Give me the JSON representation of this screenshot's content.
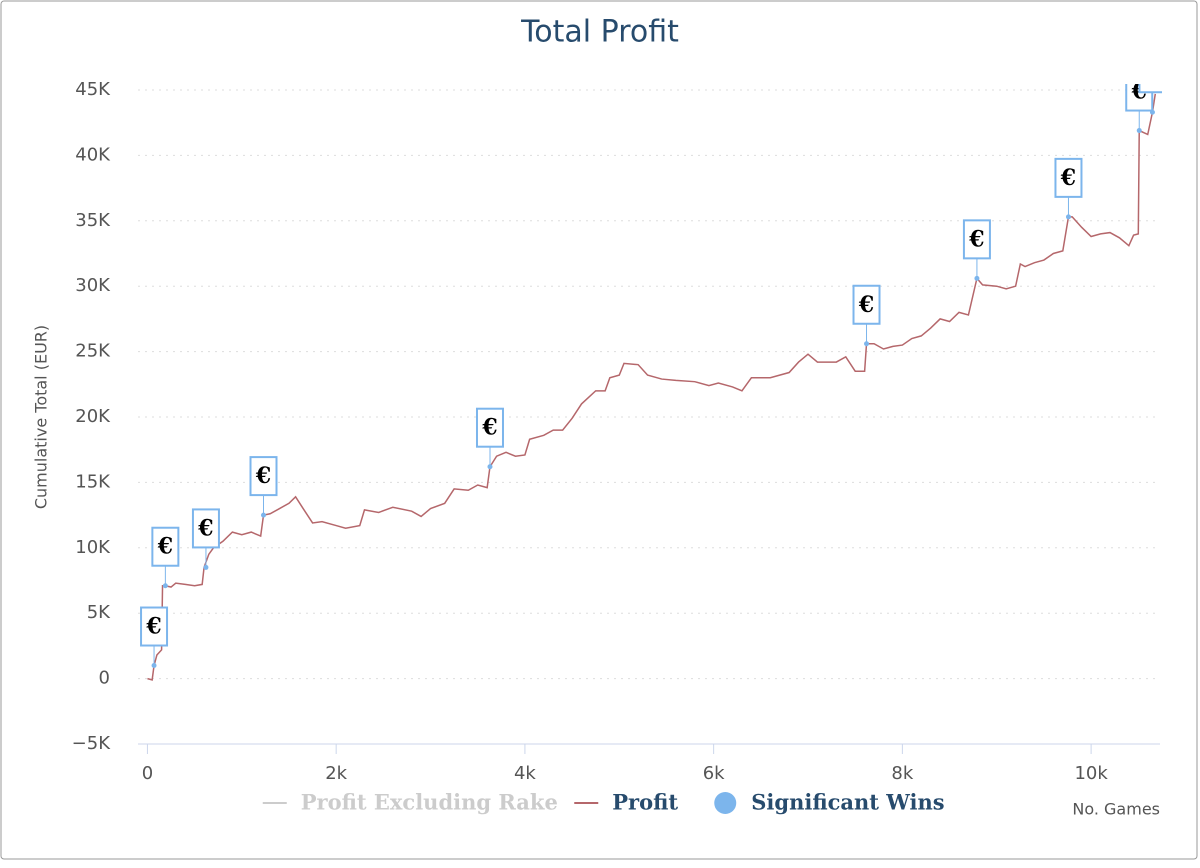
{
  "chart_data": {
    "type": "line",
    "title": "Total Profit",
    "y_label": "Cumulative Total (EUR)",
    "x_label": "No. Games",
    "xlim": [
      -100,
      10730
    ],
    "ylim": [
      -5000,
      45000
    ],
    "xticks": [
      0,
      {
        "value": 2000,
        "label": "2k"
      },
      {
        "value": 4000,
        "label": "4k"
      },
      {
        "value": 6000,
        "label": "6k"
      },
      {
        "value": 8000,
        "label": "8k"
      },
      {
        "value": 10000,
        "label": "10k"
      }
    ],
    "yticks": [
      {
        "value": -5000,
        "label": "−5K"
      },
      0,
      {
        "value": 5000,
        "label": "5K"
      },
      {
        "value": 10000,
        "label": "10K"
      },
      {
        "value": 15000,
        "label": "15K"
      },
      {
        "value": 20000,
        "label": "20K"
      },
      {
        "value": 25000,
        "label": "25K"
      },
      {
        "value": 30000,
        "label": "30K"
      },
      {
        "value": 35000,
        "label": "35K"
      },
      {
        "value": 40000,
        "label": "40K"
      },
      {
        "value": 45000,
        "label": "45K"
      }
    ],
    "grid": true,
    "legend": "bottom",
    "series": [
      {
        "name": "Profit Excluding Rake",
        "color": "#cccccc",
        "visible": false,
        "x": [],
        "values": []
      },
      {
        "name": "Profit",
        "color": "#b5676b",
        "visible": true,
        "x": [
          0,
          50,
          70,
          100,
          150,
          160,
          190,
          250,
          300,
          400,
          500,
          580,
          600,
          650,
          700,
          800,
          900,
          1000,
          1100,
          1200,
          1230,
          1300,
          1400,
          1500,
          1570,
          1650,
          1750,
          1850,
          2000,
          2100,
          2250,
          2300,
          2450,
          2600,
          2800,
          2900,
          3000,
          3150,
          3250,
          3400,
          3500,
          3600,
          3630,
          3700,
          3800,
          3900,
          4000,
          4050,
          4200,
          4300,
          4400,
          4500,
          4600,
          4750,
          4850,
          4900,
          5000,
          5050,
          5200,
          5300,
          5450,
          5600,
          5800,
          5950,
          6050,
          6200,
          6300,
          6400,
          6600,
          6800,
          6900,
          7000,
          7100,
          7300,
          7400,
          7500,
          7600,
          7620,
          7700,
          7800,
          7900,
          8000,
          8100,
          8200,
          8300,
          8400,
          8500,
          8600,
          8700,
          8790,
          8850,
          9000,
          9100,
          9200,
          9250,
          9300,
          9400,
          9500,
          9600,
          9700,
          9760,
          9800,
          9900,
          10000,
          10100,
          10200,
          10300,
          10400,
          10450,
          10500,
          10510,
          10600,
          10650,
          10680
        ],
        "values": [
          0,
          -100,
          1000,
          1800,
          2200,
          7100,
          7100,
          7000,
          7300,
          7200,
          7100,
          7200,
          8500,
          9500,
          10000,
          10500,
          11200,
          11000,
          11200,
          10900,
          12500,
          12600,
          13000,
          13400,
          13900,
          13000,
          11900,
          12000,
          11700,
          11500,
          11700,
          12900,
          12700,
          13100,
          12800,
          12400,
          13000,
          13400,
          14500,
          14400,
          14800,
          14600,
          16200,
          17000,
          17300,
          17000,
          17100,
          18300,
          18600,
          19000,
          19000,
          19900,
          21000,
          22000,
          22000,
          23000,
          23200,
          24100,
          24000,
          23200,
          22900,
          22800,
          22700,
          22400,
          22600,
          22300,
          22000,
          23000,
          23000,
          23400,
          24200,
          24800,
          24200,
          24200,
          24600,
          23500,
          23500,
          25600,
          25600,
          25200,
          25400,
          25500,
          26000,
          26200,
          26800,
          27500,
          27300,
          28000,
          27800,
          30600,
          30100,
          30000,
          29800,
          30000,
          31700,
          31500,
          31800,
          32000,
          32500,
          32700,
          35300,
          35300,
          34500,
          33800,
          34000,
          34100,
          33700,
          33100,
          33900,
          34000,
          41900,
          41600,
          43300,
          44700
        ]
      },
      {
        "name": "Significant Wins",
        "color": "#7cb5ec",
        "visible": true,
        "marker": "flag",
        "x": [
          70,
          190,
          620,
          1230,
          3630,
          7620,
          8790,
          9760,
          10510,
          10650
        ],
        "values": [
          1000,
          7100,
          8500,
          12500,
          16200,
          25600,
          30600,
          35300,
          41900,
          43300
        ],
        "labels": [
          "€",
          "€",
          "€",
          "€",
          "€",
          "€",
          "€",
          "€",
          "€",
          "€"
        ]
      }
    ]
  }
}
